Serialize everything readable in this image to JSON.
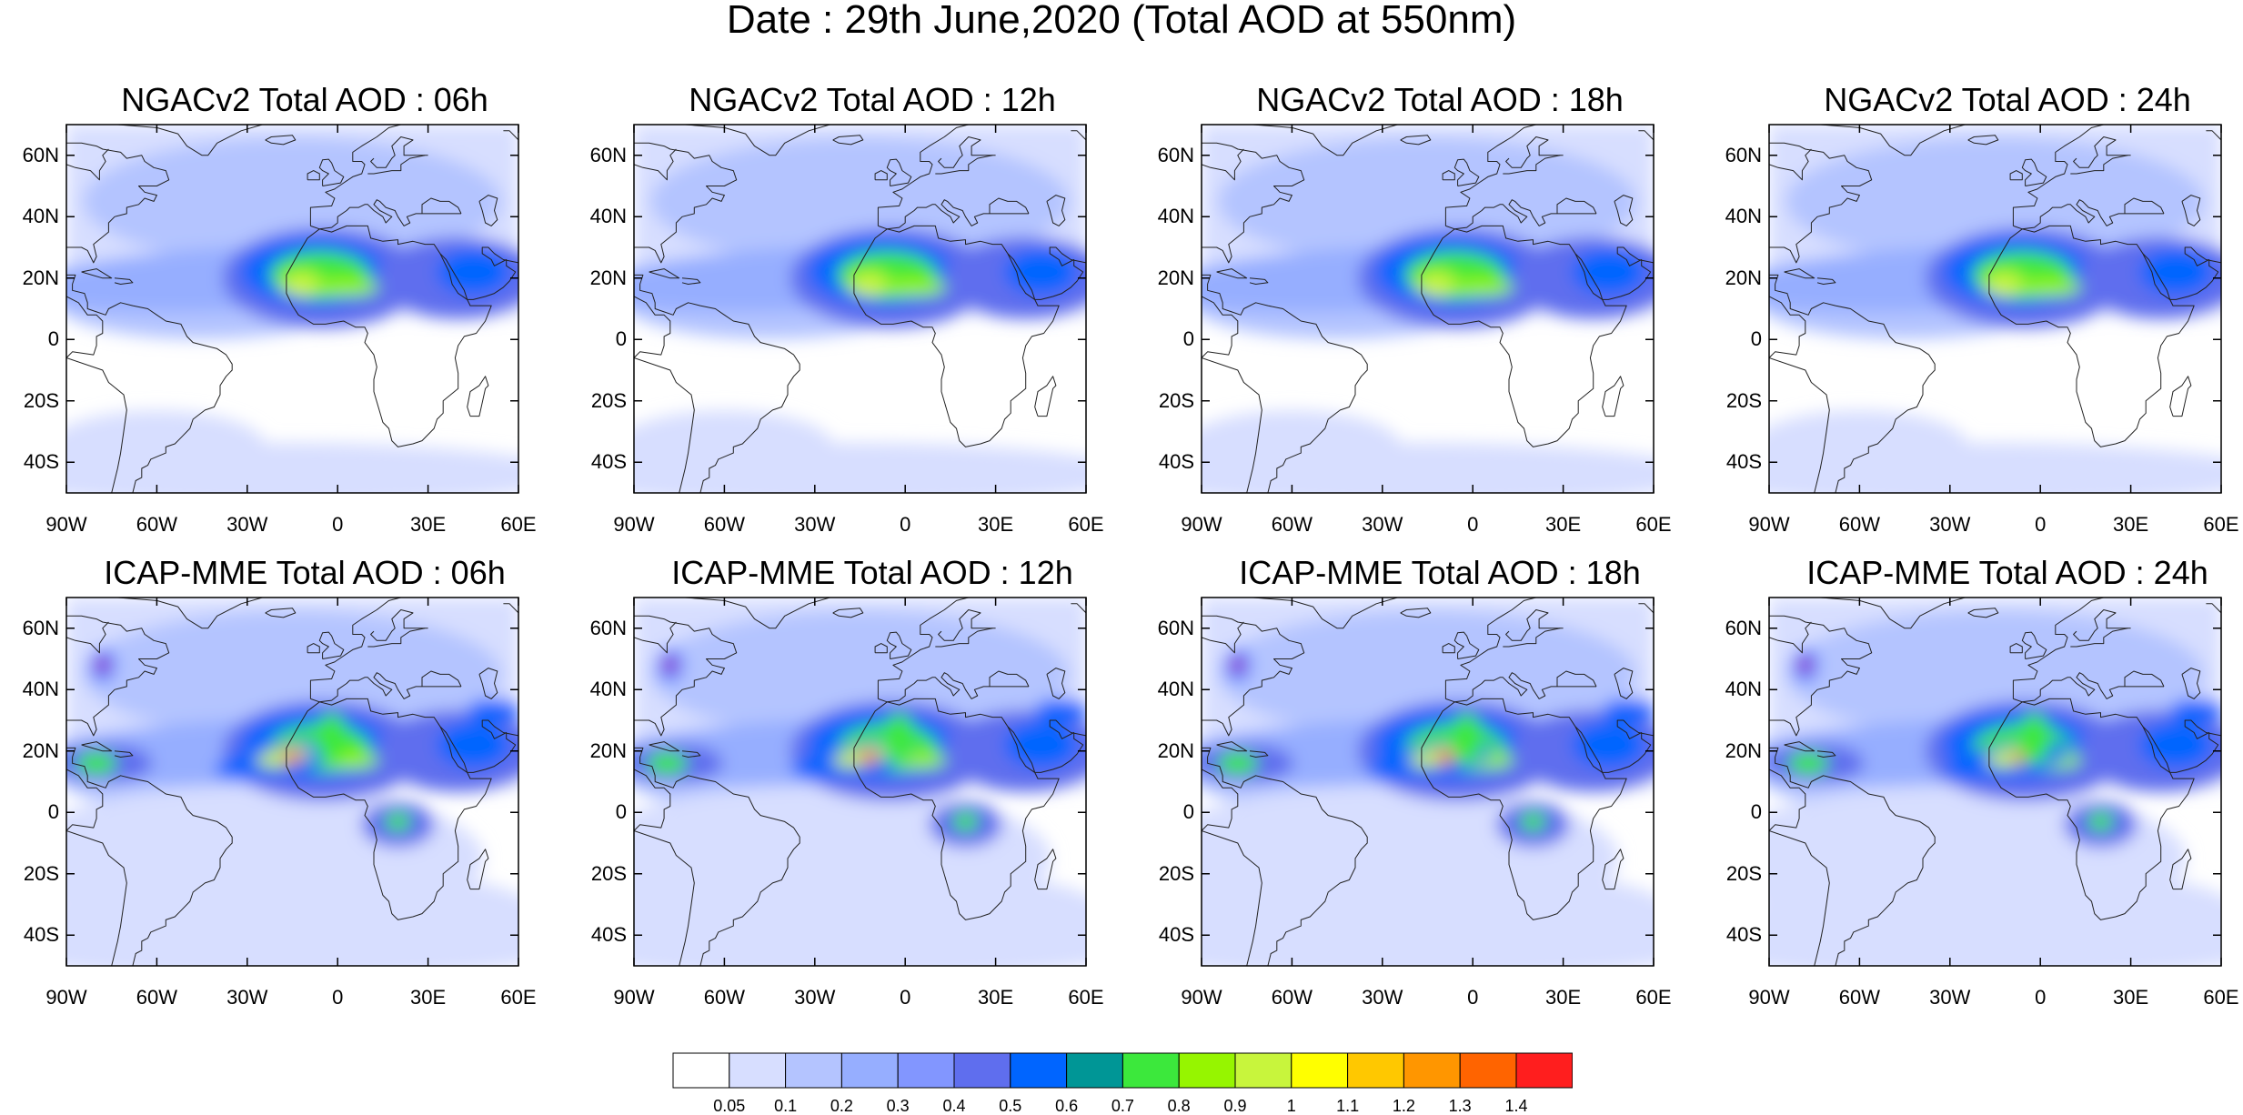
{
  "title": "Date : 29th June,2020 (Total AOD at 550nm)",
  "y_ticks": [
    {
      "value": 60,
      "label": "60N"
    },
    {
      "value": 40,
      "label": "40N"
    },
    {
      "value": 20,
      "label": "20N"
    },
    {
      "value": 0,
      "label": "0"
    },
    {
      "value": -20,
      "label": "20S"
    },
    {
      "value": -40,
      "label": "40S"
    }
  ],
  "x_ticks": [
    {
      "value": -90,
      "label": "90W"
    },
    {
      "value": -60,
      "label": "60W"
    },
    {
      "value": -30,
      "label": "30W"
    },
    {
      "value": 0,
      "label": "0"
    },
    {
      "value": 30,
      "label": "30E"
    },
    {
      "value": 60,
      "label": "60E"
    }
  ],
  "extent": {
    "lon": [
      -90,
      60
    ],
    "lat": [
      -50,
      70
    ]
  },
  "panels": [
    {
      "title": "NGACv2 Total AOD : 06h",
      "model": "ngac",
      "hour": 6
    },
    {
      "title": "NGACv2 Total AOD : 12h",
      "model": "ngac",
      "hour": 12
    },
    {
      "title": "NGACv2 Total AOD : 18h",
      "model": "ngac",
      "hour": 18
    },
    {
      "title": "NGACv2 Total AOD : 24h",
      "model": "ngac",
      "hour": 24
    },
    {
      "title": "ICAP-MME Total AOD : 06h",
      "model": "icap",
      "hour": 6
    },
    {
      "title": "ICAP-MME Total AOD : 12h",
      "model": "icap",
      "hour": 12
    },
    {
      "title": "ICAP-MME Total AOD : 18h",
      "model": "icap",
      "hour": 18
    },
    {
      "title": "ICAP-MME Total AOD : 24h",
      "model": "icap",
      "hour": 24
    }
  ],
  "colorbar": {
    "labels": [
      "0.05",
      "0.1",
      "0.2",
      "0.3",
      "0.4",
      "0.5",
      "0.6",
      "0.7",
      "0.8",
      "0.9",
      "1",
      "1.1",
      "1.2",
      "1.3",
      "1.4"
    ],
    "colors": [
      "#ffffff",
      "#d7deff",
      "#b4c4ff",
      "#96aeff",
      "#8296ff",
      "#5f6eee",
      "#0065ff",
      "#009696",
      "#3ce83c",
      "#96f500",
      "#c8f53c",
      "#ffff00",
      "#ffc800",
      "#ff9600",
      "#ff6400",
      "#ff1e1e"
    ]
  }
}
